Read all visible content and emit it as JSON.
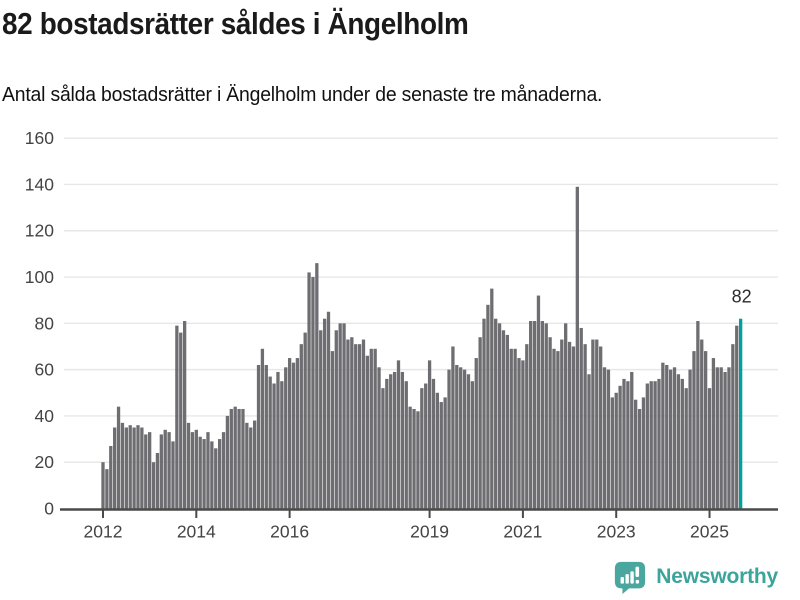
{
  "header": {
    "title": "82 bostadsrätter såldes i Ängelholm",
    "subtitle": "Antal sålda bostadsrätter i Ängelholm under de senaste tre månaderna."
  },
  "chart_data": {
    "type": "bar",
    "title": "82 bostadsrätter såldes i Ängelholm",
    "subtitle": "Antal sålda bostadsrätter i Ängelholm under de senaste tre månaderna.",
    "x_start": "2012-01",
    "x_end": "2025-09",
    "frequency": "monthly",
    "values": [
      20,
      17,
      27,
      35,
      44,
      37,
      35,
      36,
      35,
      36,
      35,
      32,
      33,
      20,
      24,
      32,
      34,
      33,
      29,
      79,
      76,
      81,
      37,
      33,
      34,
      31,
      30,
      33,
      29,
      26,
      30,
      33,
      40,
      43,
      44,
      43,
      43,
      37,
      35,
      38,
      62,
      69,
      62,
      57,
      54,
      59,
      55,
      61,
      65,
      63,
      65,
      71,
      76,
      102,
      100,
      106,
      77,
      82,
      85,
      68,
      77,
      80,
      80,
      73,
      74,
      71,
      71,
      73,
      66,
      69,
      69,
      61,
      52,
      56,
      58,
      59,
      64,
      59,
      55,
      44,
      43,
      42,
      52,
      54,
      64,
      56,
      50,
      46,
      48,
      60,
      70,
      62,
      61,
      60,
      58,
      55,
      65,
      74,
      82,
      88,
      95,
      82,
      80,
      77,
      75,
      69,
      69,
      65,
      64,
      71,
      81,
      81,
      92,
      81,
      80,
      74,
      69,
      68,
      73,
      80,
      72,
      70,
      139,
      78,
      71,
      58,
      73,
      73,
      70,
      61,
      60,
      48,
      50,
      53,
      56,
      55,
      59,
      47,
      43,
      48,
      54,
      55,
      55,
      56,
      63,
      62,
      60,
      61,
      58,
      56,
      52,
      60,
      68,
      81,
      73,
      68,
      52,
      65,
      61,
      61,
      59,
      61,
      71,
      79,
      82
    ],
    "highlight": {
      "index": 164,
      "label": "82",
      "color": "#00a09b"
    },
    "bar_color": "#6e6e72",
    "x_tick_labels": [
      "2012",
      "2014",
      "2016",
      "2019",
      "2021",
      "2023",
      "2025"
    ],
    "x_tick_years": [
      2012,
      2014,
      2016,
      2019,
      2021,
      2023,
      2025
    ],
    "start_year": 2012,
    "y_ticks": [
      0,
      20,
      40,
      60,
      80,
      100,
      120,
      140,
      160
    ],
    "ylim": [
      0,
      160
    ],
    "grid": "horizontal",
    "legend": "none"
  },
  "footer": {
    "brand": "Newsworthy"
  },
  "colors": {
    "accent_teal": "#00a09b",
    "logo_teal": "#4aa79f",
    "logo_text_teal": "#3ba49b",
    "bar_gray": "#6e6e72",
    "grid_line": "#e7e7e7",
    "axis_line": "#4a4a4a",
    "label_gray": "#444444",
    "annotation": "#2b2b2b",
    "background": "#ffffff"
  }
}
